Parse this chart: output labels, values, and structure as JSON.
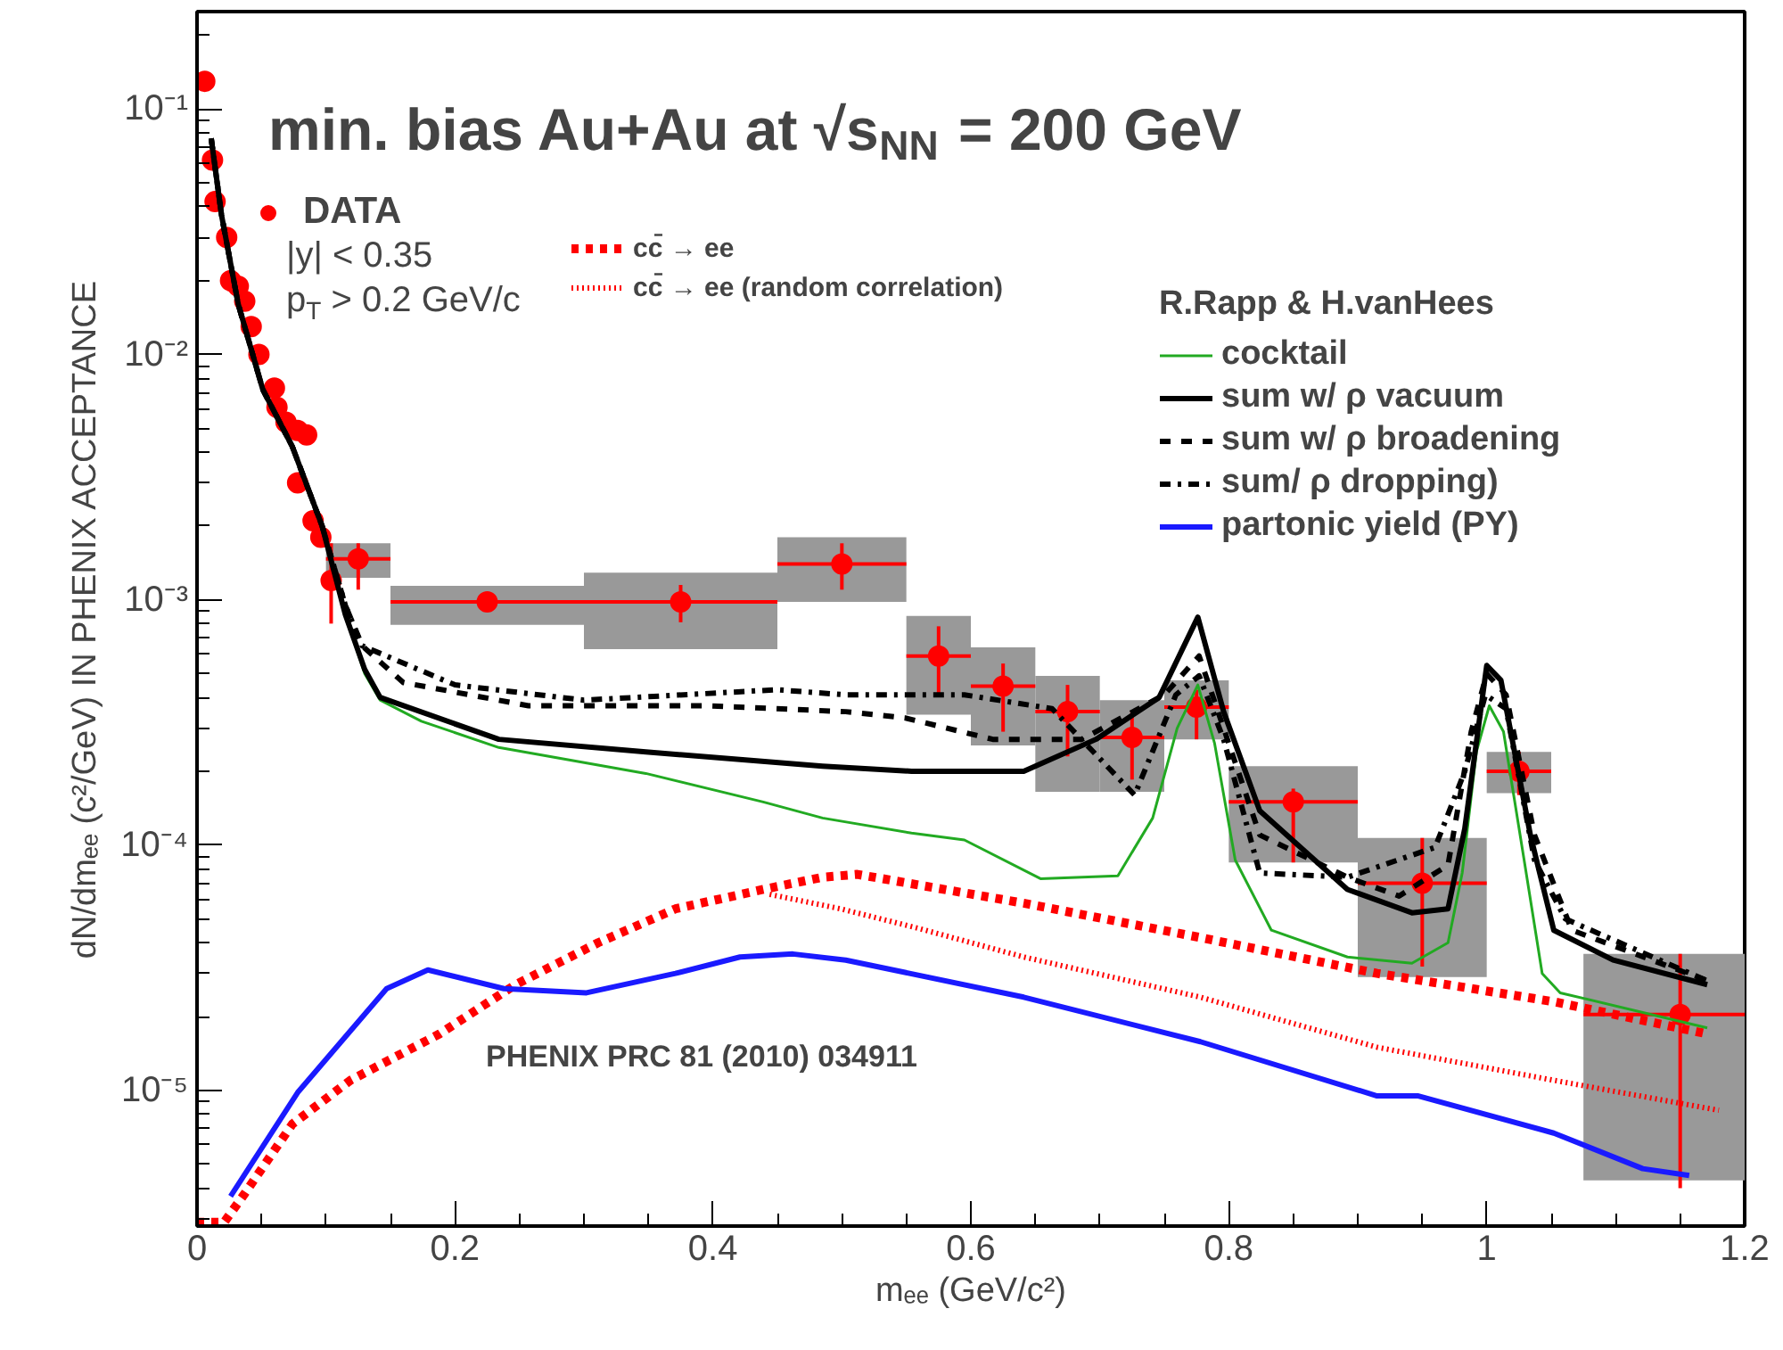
{
  "chart_data": {
    "type": "line",
    "title": "min. bias Au+Au at √s$_{NN}$ = 200 GeV",
    "xlabel": "mₑₑ (GeV/c²)",
    "ylabel": "dN/dmₑₑ (c²/GeV) IN PHENIX ACCEPTANCE",
    "legend_title": "R.Rapp & H.vanHees",
    "annotations": [
      "|y| < 0.35",
      "p$_{T}$ > 0.2 GeV/c",
      "PHENIX PRC 81 (2010) 034911"
    ],
    "log": "y",
    "grid": false,
    "legend": "top",
    "xlim": [
      0,
      1.2
    ],
    "xticks": [
      0,
      0.2,
      0.4,
      0.6,
      0.8,
      1,
      1.2
    ],
    "ylim": [
      2.8e-06,
      0.25
    ],
    "yticks": [
      {
        "value": 1e-05,
        "label": "10⁻⁵"
      },
      {
        "value": 0.0001,
        "label": "10⁻⁴"
      },
      {
        "value": 0.001,
        "label": "10⁻³"
      },
      {
        "value": 0.01,
        "label": "10⁻²"
      },
      {
        "value": 0.1,
        "label": "10⁻¹"
      }
    ],
    "series": [
      {
        "type": "bar",
        "color": "#999999",
        "x": [
          0.125,
          0.225,
          0.375,
          0.5,
          0.575,
          0.625,
          0.675,
          0.725,
          0.775,
          0.85,
          0.95,
          1.025,
          1.15
        ],
        "base": [
          0.00123,
          0.00079,
          0.00063,
          0.00098,
          0.00034,
          0.000255,
          0.000165,
          0.000165,
          0.00027,
          8.5e-05,
          2.9e-05,
          0.000163,
          4.3e-06
        ],
        "values": [
          0.00047,
          0.00035,
          0.00066,
          0.00082,
          0.00052,
          0.000385,
          0.000325,
          0.000225,
          0.0002,
          0.000125,
          7.8e-05,
          7.7e-05,
          3.17e-05
        ],
        "xerrors": [
          0.025,
          0.075,
          0.075,
          0.05,
          0.025,
          0.025,
          0.025,
          0.025,
          0.025,
          0.05,
          0.05,
          0.025,
          0.075
        ]
      },
      {
        "type": "scatter",
        "name": "DATA",
        "color": "#ff0000",
        "marker": "circle",
        "x": [
          0.006,
          0.012,
          0.014,
          0.023,
          0.026,
          0.032,
          0.037,
          0.042,
          0.048,
          0.06,
          0.062,
          0.069,
          0.078,
          0.085,
          0.078,
          0.09,
          0.096,
          0.104,
          0.125,
          0.225,
          0.375,
          0.5,
          0.575,
          0.625,
          0.675,
          0.725,
          0.775,
          0.85,
          0.95,
          1.025,
          1.15
        ],
        "values": [
          0.13,
          0.062,
          0.042,
          0.03,
          0.02,
          0.019,
          0.0165,
          0.013,
          0.01,
          0.0073,
          0.0061,
          0.0053,
          0.0049,
          0.0047,
          0.003,
          0.0021,
          0.0018,
          0.0012,
          0.00147,
          0.00098,
          0.00098,
          0.0014,
          0.00059,
          0.000445,
          0.00035,
          0.000275,
          0.000365,
          0.00015,
          7e-05,
          0.0002,
          2.04e-05
        ],
        "errors": [
          null,
          null,
          null,
          null,
          null,
          null,
          null,
          null,
          null,
          null,
          null,
          null,
          null,
          null,
          null,
          null,
          null,
          [
            0.0008,
            0.0017
          ],
          [
            0.0011,
            0.0017
          ],
          [
            0.00093,
            0.00104
          ],
          [
            0.00081,
            0.00115
          ],
          [
            0.0011,
            0.0017
          ],
          [
            0.00041,
            0.00078
          ],
          [
            0.00029,
            0.00055
          ],
          [
            0.00023,
            0.00045
          ],
          [
            0.000185,
            0.00035
          ],
          [
            0.00027,
            0.00043
          ],
          [
            8.5e-05,
            0.00017
          ],
          [
            3.2e-05,
            0.000107
          ],
          [
            0.00016,
            0.00024
          ],
          [
            4e-06,
            3.6e-05
          ]
        ],
        "xerrors": [
          null,
          null,
          null,
          null,
          null,
          null,
          null,
          null,
          null,
          null,
          null,
          null,
          null,
          null,
          null,
          null,
          null,
          null,
          0.025,
          0.075,
          0.075,
          0.05,
          0.025,
          0.025,
          0.025,
          0.025,
          0.025,
          0.05,
          0.05,
          0.025,
          0.075
        ]
      },
      {
        "name": "cc̄ → ee",
        "color": "#ff0000",
        "line_style": "dashed",
        "x": [
          0,
          0.021,
          0.037,
          0.074,
          0.119,
          0.188,
          0.247,
          0.311,
          0.371,
          0.439,
          0.485,
          0.512,
          0.641,
          0.778,
          0.915,
          1.052,
          1.171
        ],
        "values": [
          2.9e-06,
          2.9e-06,
          3.8e-06,
          7.3e-06,
          1.1e-05,
          1.7e-05,
          2.7e-05,
          4e-05,
          5.5e-05,
          6.6e-05,
          7.4e-05,
          7.6e-05,
          5.8e-05,
          4.2e-05,
          3e-05,
          2.3e-05,
          1.7e-05
        ]
      },
      {
        "name": "cc̄ → ee (random correlation)",
        "color": "#ff0000",
        "line_style": "dotted",
        "x": [
          0.444,
          0.499,
          0.558,
          0.641,
          0.778,
          0.915,
          1.052,
          1.18
        ],
        "values": [
          6.3e-05,
          5.5e-05,
          4.6e-05,
          3.5e-05,
          2.4e-05,
          1.5e-05,
          1.1e-05,
          8.3e-06
        ]
      },
      {
        "name": "cocktail",
        "color": "#22aa22",
        "line_style": "solid",
        "x": [
          0.115,
          0.13,
          0.142,
          0.174,
          0.234,
          0.348,
          0.439,
          0.485,
          0.554,
          0.595,
          0.654,
          0.714,
          0.741,
          0.76,
          0.776,
          0.789,
          0.805,
          0.833,
          0.892,
          0.942,
          0.97,
          0.981,
          0.992,
          1.002,
          1.013,
          1.029,
          1.043,
          1.057,
          1.171
        ],
        "values": [
          0.00087,
          0.0005,
          0.00039,
          0.00032,
          0.00025,
          0.000196,
          0.00015,
          0.000129,
          0.000112,
          0.000105,
          7.3e-05,
          7.5e-05,
          0.000129,
          0.0003,
          0.00045,
          0.00026,
          8.7e-05,
          4.5e-05,
          3.5e-05,
          3.3e-05,
          4e-05,
          7.7e-05,
          0.00024,
          0.00037,
          0.00029,
          8.7e-05,
          3e-05,
          2.5e-05,
          1.8e-05
        ]
      },
      {
        "name": "sum w/ ρ vacuum",
        "color": "#000000",
        "line_style": "solid",
        "x": [
          0.011,
          0.019,
          0.032,
          0.051,
          0.074,
          0.097,
          0.115,
          0.13,
          0.142,
          0.234,
          0.348,
          0.485,
          0.554,
          0.641,
          0.697,
          0.746,
          0.776,
          0.796,
          0.824,
          0.892,
          0.942,
          0.97,
          0.983,
          1.0,
          1.011,
          1.034,
          1.052,
          1.098,
          1.171
        ],
        "values": [
          0.076,
          0.037,
          0.016,
          0.0072,
          0.0042,
          0.002,
          0.00087,
          0.00052,
          0.0004,
          0.00027,
          0.00024,
          0.00021,
          0.0002,
          0.0002,
          0.00027,
          0.0004,
          0.00085,
          0.00035,
          0.000138,
          6.6e-05,
          5.3e-05,
          5.5e-05,
          0.000117,
          0.00054,
          0.00047,
          0.000109,
          4.5e-05,
          3.4e-05,
          2.7e-05
        ]
      },
      {
        "name": "sum w/ ρ broadening",
        "color": "#000000",
        "line_style": "dashed",
        "x": [
          0.011,
          0.019,
          0.032,
          0.051,
          0.074,
          0.097,
          0.115,
          0.128,
          0.16,
          0.257,
          0.394,
          0.503,
          0.549,
          0.617,
          0.686,
          0.75,
          0.777,
          0.796,
          0.824,
          0.892,
          0.932,
          0.97,
          0.988,
          1.0,
          1.015,
          1.037,
          1.066,
          1.171
        ],
        "values": [
          0.076,
          0.037,
          0.016,
          0.0072,
          0.0042,
          0.002,
          0.00095,
          0.00065,
          0.00046,
          0.00037,
          0.00037,
          0.00035,
          0.00033,
          0.00027,
          0.00027,
          0.00041,
          0.00059,
          0.0003,
          0.00011,
          7.4e-05,
          6.2e-05,
          8.3e-05,
          0.00029,
          0.0005,
          0.00041,
          0.00011,
          4.5e-05,
          2.8e-05
        ]
      },
      {
        "name": "sum/ ρ dropping)",
        "color": "#000000",
        "line_style": "dashdot",
        "x": [
          0.011,
          0.019,
          0.032,
          0.051,
          0.074,
          0.097,
          0.115,
          0.128,
          0.2,
          0.3,
          0.45,
          0.503,
          0.595,
          0.663,
          0.727,
          0.759,
          0.777,
          0.796,
          0.824,
          0.892,
          0.96,
          0.983,
          0.999,
          1.015,
          1.037,
          1.061,
          1.171
        ],
        "values": [
          0.076,
          0.037,
          0.016,
          0.0072,
          0.0042,
          0.002,
          0.00095,
          0.00065,
          0.00045,
          0.00039,
          0.00043,
          0.00041,
          0.00041,
          0.00036,
          0.00016,
          0.00041,
          0.00049,
          0.00027,
          7.7e-05,
          7.4e-05,
          9.8e-05,
          0.0002,
          0.00041,
          0.00036,
          8.7e-05,
          5e-05,
          2.8e-05
        ]
      },
      {
        "name": "partonic yield (PY)",
        "color": "#1a1aff",
        "line_style": "solid",
        "x": [
          0.026,
          0.078,
          0.147,
          0.179,
          0.238,
          0.302,
          0.371,
          0.421,
          0.462,
          0.503,
          0.641,
          0.778,
          0.915,
          0.947,
          1.052,
          1.121,
          1.157
        ],
        "values": [
          3.7e-06,
          9.8e-06,
          2.6e-05,
          3.1e-05,
          2.6e-05,
          2.5e-05,
          3e-05,
          3.5e-05,
          3.6e-05,
          3.4e-05,
          2.4e-05,
          1.58e-05,
          9.5e-06,
          9.5e-06,
          6.7e-06,
          4.8e-06,
          4.5e-06
        ]
      }
    ]
  }
}
